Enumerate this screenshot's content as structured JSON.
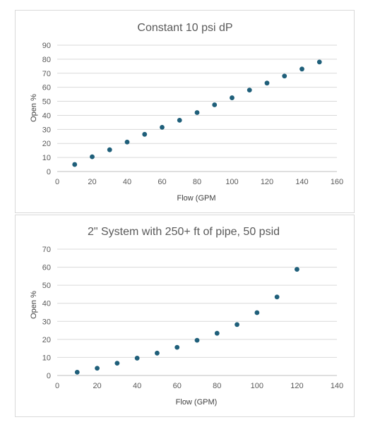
{
  "chart_data": [
    {
      "type": "scatter",
      "title": "Constant 10 psi dP",
      "xlabel": "Flow (GPM",
      "ylabel": "Open %",
      "xlim": [
        0,
        160
      ],
      "ylim": [
        0,
        90
      ],
      "xticks": [
        0,
        20,
        40,
        60,
        80,
        100,
        120,
        140,
        160
      ],
      "yticks": [
        0,
        10,
        20,
        30,
        40,
        50,
        60,
        70,
        80,
        90
      ],
      "grid": "horizontal",
      "marker_color": "#1f5f7a",
      "series": [
        {
          "x": [
            10,
            20,
            30,
            40,
            50,
            60,
            70,
            80,
            90,
            100,
            110,
            120,
            130,
            140,
            150
          ],
          "y": [
            5,
            10.5,
            15.5,
            21,
            26.5,
            31.5,
            36.5,
            42,
            47.5,
            52.5,
            58,
            63,
            68,
            73,
            78
          ]
        }
      ]
    },
    {
      "type": "scatter",
      "title": "2\" System with 250+ ft of pipe, 50 psid",
      "xlabel": "Flow (GPM)",
      "ylabel": "Open %",
      "xlim": [
        0,
        140
      ],
      "ylim": [
        0,
        70
      ],
      "xticks": [
        0,
        20,
        40,
        60,
        80,
        100,
        120,
        140
      ],
      "yticks": [
        0,
        10,
        20,
        30,
        40,
        50,
        60,
        70
      ],
      "grid": "horizontal",
      "marker_color": "#1f5f7a",
      "series": [
        {
          "x": [
            10,
            20,
            30,
            40,
            50,
            60,
            70,
            80,
            90,
            100,
            110,
            120
          ],
          "y": [
            1.8,
            4,
            6.8,
            9.6,
            12.4,
            15.6,
            19.5,
            23.4,
            28.2,
            34.8,
            43.5,
            58.8
          ]
        }
      ]
    }
  ]
}
